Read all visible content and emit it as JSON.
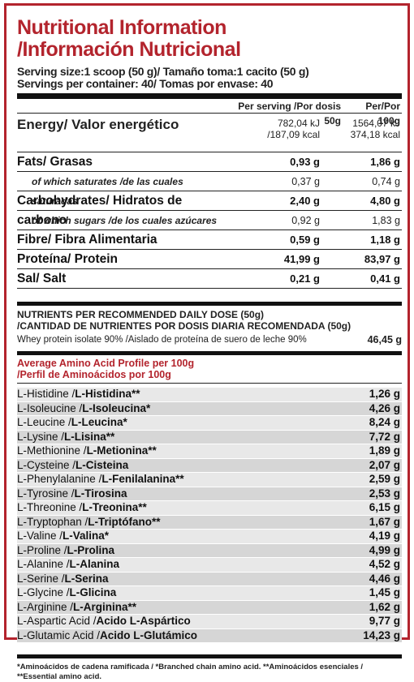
{
  "title_en": "Nutritional Information",
  "title_es": "/Información Nutricional",
  "serving_size": "Serving size:1 scoop (50 g)/ Tamaño toma:1 cacito (50 g)",
  "servings_per_container": "Servings per container: 40/ Tomas por envase: 40",
  "table_header": {
    "per_serving": "Per serving /Por dosis 50g",
    "per_100g": "Per/Por 100g"
  },
  "energy": {
    "label": "Energy/ Valor energético",
    "serving_kj": "782,04 kJ",
    "serving_kcal": "/187,09 kcal",
    "per100_kj": "1564,07 kJ",
    "per100_kcal": "374,18 kcal"
  },
  "nutrients": [
    {
      "label": "Fats/ Grasas",
      "serving": "0,93 g",
      "per100": "1,86 g",
      "type": "big"
    },
    {
      "label": "of which saturates /de las cuales saturadas",
      "serving": "0,37 g",
      "per100": "0,74 g",
      "type": "sub"
    },
    {
      "label": "Carbohydrates/ Hidratos de carbono",
      "serving": "2,40 g",
      "per100": "4,80 g",
      "type": "big"
    },
    {
      "label": "of which sugars /de los cuales azúcares",
      "serving": "0,92 g",
      "per100": "1,83 g",
      "type": "sub"
    },
    {
      "label": "Fibre/ Fibra Alimentaria",
      "serving": "0,59 g",
      "per100": "1,18 g",
      "type": "big"
    },
    {
      "label": "Proteína/ Protein",
      "serving": "41,99 g",
      "per100": "83,97 g",
      "type": "big"
    },
    {
      "label": "Sal/ Salt",
      "serving": "0,21 g",
      "per100": "0,41 g",
      "type": "big"
    }
  ],
  "daily_dose": {
    "title_en": "NUTRIENTS PER RECOMMENDED DAILY DOSE (50g)",
    "title_es": "/CANTIDAD DE NUTRIENTES POR DOSIS DIARIA RECOMENDADA (50g)",
    "whey_label": "Whey protein isolate 90% /Aislado de proteína de suero de leche 90%",
    "whey_value": "46,45 g"
  },
  "amino": {
    "title_en": "Average Amino Acid Profile per 100g",
    "title_es": "/Perfil de Aminoácidos por 100g",
    "items": [
      {
        "en": "L-Histidine /",
        "es": "L-Histidina**",
        "value": "1,26 g"
      },
      {
        "en": "L-Isoleucine /",
        "es": "L-Isoleucina*",
        "value": "4,26 g"
      },
      {
        "en": "L-Leucine /",
        "es": "L-Leucina*",
        "value": "8,24 g"
      },
      {
        "en": "L-Lysine /",
        "es": "L-Lisina**",
        "value": "7,72 g"
      },
      {
        "en": "L-Methionine /",
        "es": "L-Metionina**",
        "value": "1,89 g"
      },
      {
        "en": "L-Cysteine /",
        "es": "L-Cisteina",
        "value": "2,07 g"
      },
      {
        "en": "L-Phenylalanine /",
        "es": "L-Fenilalanina**",
        "value": "2,59 g"
      },
      {
        "en": "L-Tyrosine /",
        "es": "L-Tirosina",
        "value": "2,53 g"
      },
      {
        "en": "L-Threonine /",
        "es": "L-Treonina**",
        "value": "6,15 g"
      },
      {
        "en": "L-Tryptophan /",
        "es": "L-Triptófano**",
        "value": "1,67 g"
      },
      {
        "en": "L-Valine /",
        "es": "L-Valina*",
        "value": "4,19 g"
      },
      {
        "en": "L-Proline /",
        "es": "L-Prolina",
        "value": "4,99 g"
      },
      {
        "en": "L-Alanine /",
        "es": "L-Alanina",
        "value": "4,52 g"
      },
      {
        "en": "L-Serine /",
        "es": "L-Serina",
        "value": "4,46 g"
      },
      {
        "en": "L-Glycine /",
        "es": "L-Glicina",
        "value": "1,45 g"
      },
      {
        "en": "L-Arginine /",
        "es": "L-Arginina**",
        "value": "1,62 g"
      },
      {
        "en": "L-Aspartic Acid /",
        "es": "Acido L-Aspártico",
        "value": "9,77 g"
      },
      {
        "en": "L-Glutamic Acid /",
        "es": "Acido L-Glutámico",
        "value": "14,23 g"
      }
    ]
  },
  "footnote": "*Aminoácidos de cadena ramificada / *Branched chain amino acid. **Aminoácidos esenciales / **Essential amino acid.",
  "colors": {
    "accent": "#b3242d",
    "bar": "#111111",
    "row_light": "#e8e8e8",
    "row_dark": "#d6d6d6"
  }
}
